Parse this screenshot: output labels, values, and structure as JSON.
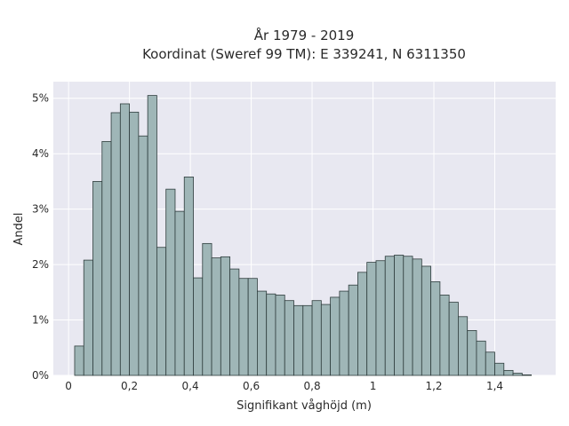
{
  "chart_data": {
    "type": "bar",
    "title": [
      "År 1979 - 2019",
      "Koordinat (Sweref 99 TM): E 339241, N 6311350"
    ],
    "xlabel": "Signifikant våghöjd (m)",
    "ylabel": "Andel",
    "xlim": [
      -0.05,
      1.6
    ],
    "ylim": [
      0,
      5.3
    ],
    "x_ticks": [
      0,
      0.2,
      0.4,
      0.6,
      0.8,
      1,
      1.2,
      1.4
    ],
    "x_tick_labels": [
      "0",
      "0,2",
      "0,4",
      "0,6",
      "0,8",
      "1",
      "1,2",
      "1,4"
    ],
    "y_ticks": [
      0,
      1,
      2,
      3,
      4,
      5
    ],
    "y_tick_labels": [
      "0%",
      "1%",
      "2%",
      "3%",
      "4%",
      "5%"
    ],
    "bin_start": 0.02,
    "bin_width": 0.03,
    "values": [
      0.53,
      2.08,
      3.5,
      4.22,
      4.74,
      4.9,
      4.75,
      4.32,
      5.05,
      2.31,
      3.36,
      2.96,
      3.58,
      1.76,
      2.38,
      2.12,
      2.14,
      1.92,
      1.75,
      1.75,
      1.52,
      1.47,
      1.45,
      1.35,
      1.26,
      1.26,
      1.35,
      1.28,
      1.41,
      1.52,
      1.63,
      1.86,
      2.04,
      2.07,
      2.15,
      2.17,
      2.15,
      2.1,
      1.97,
      1.69,
      1.45,
      1.32,
      1.06,
      0.81,
      0.62,
      0.42,
      0.22,
      0.09,
      0.04,
      0.01
    ],
    "grid": true,
    "legend": "none",
    "colors": {
      "bar_fill": "#9fb6b7",
      "bar_edge": "#2f3d3d",
      "plot_background": "#e8e8f1",
      "grid": "#ffffff"
    }
  }
}
